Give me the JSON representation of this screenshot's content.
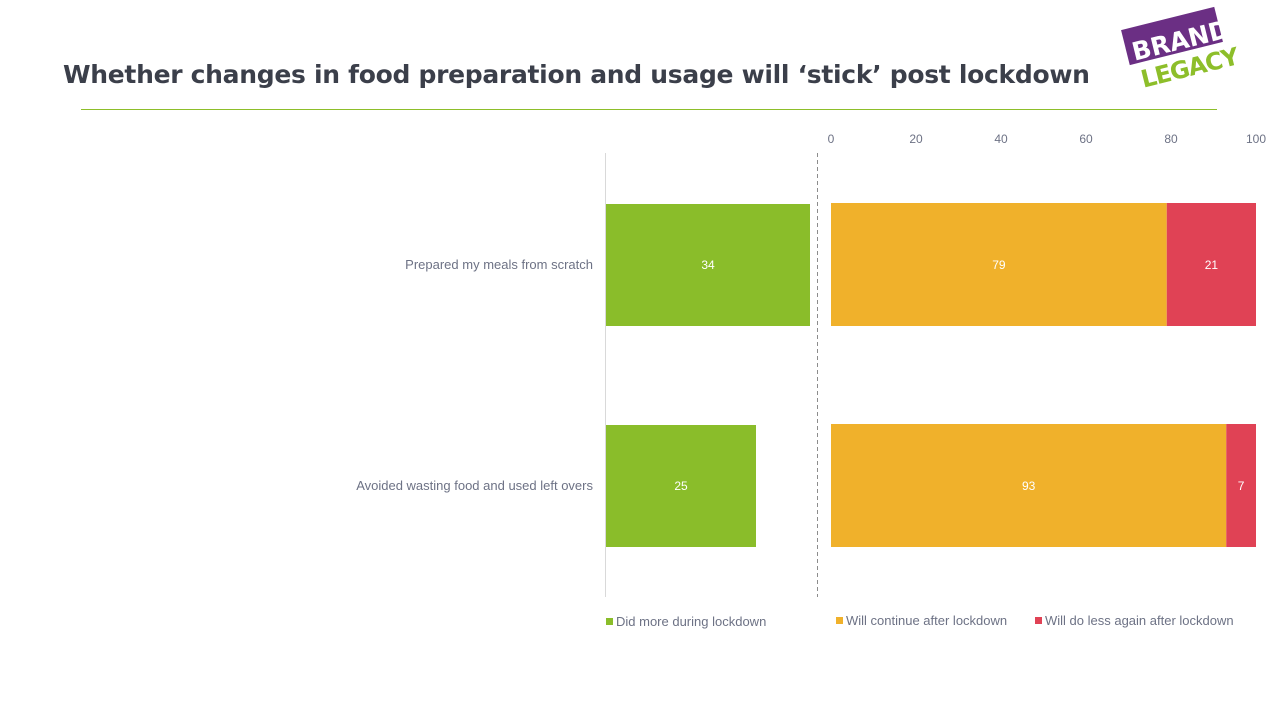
{
  "title": "Whether changes in food preparation and usage will ‘stick’ post lockdown",
  "logo": {
    "line1": "BRAND",
    "line2": "LEGACY"
  },
  "colors": {
    "green": "#8abd2a",
    "orange": "#f0b12b",
    "red": "#e04255",
    "rule": "#8dbe2a",
    "text": "#6d7285"
  },
  "chart_data": {
    "type": "bar",
    "orientation": "horizontal",
    "categories": [
      "Prepared my meals from scratch",
      "Avoided wasting food and used left overs"
    ],
    "left_panel": {
      "series": [
        {
          "name": "Did more during lockdown",
          "values": [
            34,
            25
          ]
        }
      ]
    },
    "right_panel": {
      "stacked": true,
      "xlim": [
        0,
        100
      ],
      "ticks": [
        "0",
        "20",
        "40",
        "60",
        "80",
        "100"
      ],
      "series": [
        {
          "name": "Will continue after lockdown",
          "values": [
            79,
            93
          ]
        },
        {
          "name": "Will do less again after lockdown",
          "values": [
            21,
            7
          ]
        }
      ]
    },
    "legend": [
      "Did more during lockdown",
      "Will continue after lockdown",
      "Will do less again after lockdown"
    ]
  }
}
